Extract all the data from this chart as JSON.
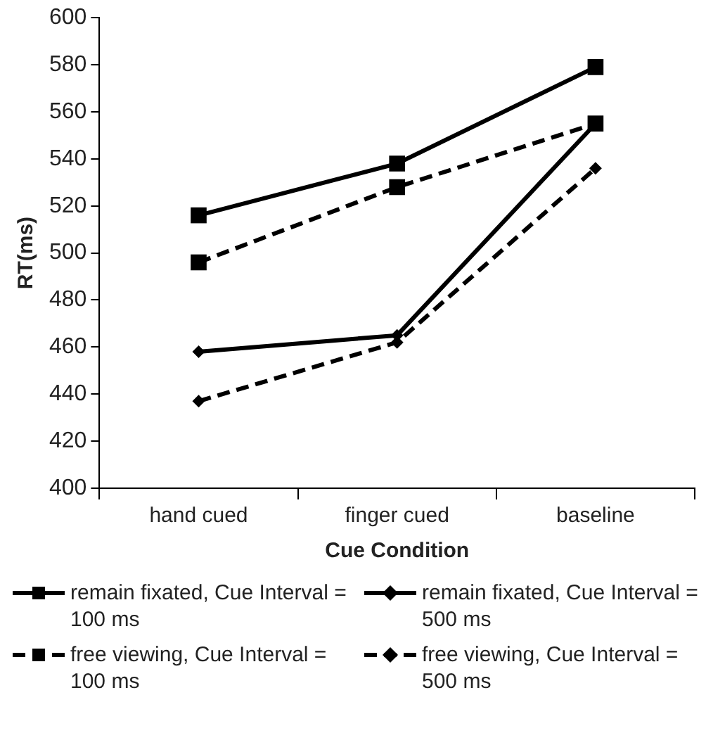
{
  "chart_data": {
    "type": "line",
    "xlabel": "Cue Condition",
    "ylabel": "RT(ms)",
    "categories": [
      "hand cued",
      "finger cued",
      "baseline"
    ],
    "ylim": [
      400,
      600
    ],
    "yticks": [
      400,
      420,
      440,
      460,
      480,
      500,
      520,
      540,
      560,
      580,
      600
    ],
    "grid": false,
    "legend": "bottom",
    "series": [
      {
        "name": "remain fixated, Cue Interval = 100 ms",
        "color": "#000000",
        "marker": "square",
        "line_style": "solid",
        "values": [
          516,
          538,
          579
        ]
      },
      {
        "name": "remain fixated, Cue Interval = 500 ms",
        "color": "#000000",
        "marker": "diamond",
        "line_style": "solid",
        "values": [
          458,
          465,
          555
        ]
      },
      {
        "name": "free viewing, Cue Interval = 100 ms",
        "color": "#000000",
        "marker": "square",
        "line_style": "dashed",
        "values": [
          496,
          528,
          555
        ]
      },
      {
        "name": "free viewing, Cue Interval = 500 ms",
        "color": "#000000",
        "marker": "diamond",
        "line_style": "dashed",
        "values": [
          437,
          462,
          536
        ]
      }
    ]
  }
}
